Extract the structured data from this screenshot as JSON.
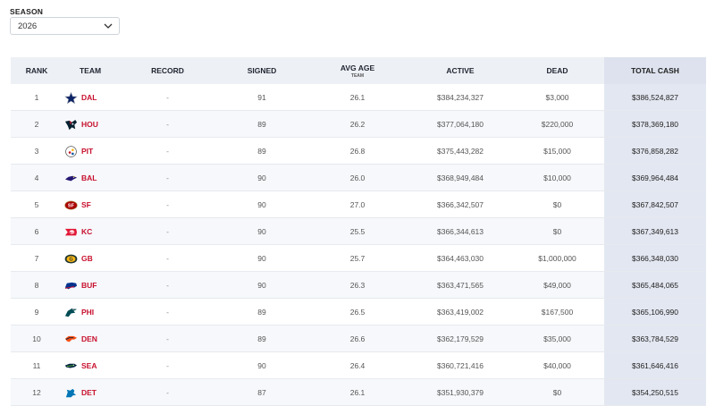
{
  "season": {
    "label": "SEASON",
    "selected": "2026"
  },
  "headers": {
    "rank": "RANK",
    "team": "TEAM",
    "record": "RECORD",
    "signed": "SIGNED",
    "avg_age": "AVG AGE",
    "avg_age_sub": "TEAM",
    "active": "ACTIVE",
    "dead": "DEAD",
    "total_cash": "TOTAL CASH"
  },
  "rows": [
    {
      "rank": "1",
      "team": "DAL",
      "logo": "cowboys-star-icon",
      "record": "-",
      "signed": "91",
      "avg_age": "26.1",
      "active": "$384,234,327",
      "dead": "$3,000",
      "total": "$386,524,827"
    },
    {
      "rank": "2",
      "team": "HOU",
      "logo": "texans-bull-icon",
      "record": "-",
      "signed": "89",
      "avg_age": "26.2",
      "active": "$377,064,180",
      "dead": "$220,000",
      "total": "$378,369,180"
    },
    {
      "rank": "3",
      "team": "PIT",
      "logo": "steelers-logo-icon",
      "record": "-",
      "signed": "89",
      "avg_age": "26.8",
      "active": "$375,443,282",
      "dead": "$15,000",
      "total": "$376,858,282"
    },
    {
      "rank": "4",
      "team": "BAL",
      "logo": "ravens-icon",
      "record": "-",
      "signed": "90",
      "avg_age": "26.0",
      "active": "$368,949,484",
      "dead": "$10,000",
      "total": "$369,964,484"
    },
    {
      "rank": "5",
      "team": "SF",
      "logo": "49ers-oval-icon",
      "record": "-",
      "signed": "90",
      "avg_age": "27.0",
      "active": "$366,342,507",
      "dead": "$0",
      "total": "$367,842,507"
    },
    {
      "rank": "6",
      "team": "KC",
      "logo": "chiefs-arrowhead-icon",
      "record": "-",
      "signed": "90",
      "avg_age": "25.5",
      "active": "$366,344,613",
      "dead": "$0",
      "total": "$367,349,613"
    },
    {
      "rank": "7",
      "team": "GB",
      "logo": "packers-g-icon",
      "record": "-",
      "signed": "90",
      "avg_age": "25.7",
      "active": "$364,463,030",
      "dead": "$1,000,000",
      "total": "$366,348,030"
    },
    {
      "rank": "8",
      "team": "BUF",
      "logo": "bills-buffalo-icon",
      "record": "-",
      "signed": "90",
      "avg_age": "26.3",
      "active": "$363,471,565",
      "dead": "$49,000",
      "total": "$365,484,065"
    },
    {
      "rank": "9",
      "team": "PHI",
      "logo": "eagles-head-icon",
      "record": "-",
      "signed": "89",
      "avg_age": "26.5",
      "active": "$363,419,002",
      "dead": "$167,500",
      "total": "$365,106,990"
    },
    {
      "rank": "10",
      "team": "DEN",
      "logo": "broncos-horse-icon",
      "record": "-",
      "signed": "89",
      "avg_age": "26.6",
      "active": "$362,179,529",
      "dead": "$35,000",
      "total": "$363,784,529"
    },
    {
      "rank": "11",
      "team": "SEA",
      "logo": "seahawks-head-icon",
      "record": "-",
      "signed": "90",
      "avg_age": "26.4",
      "active": "$360,721,416",
      "dead": "$40,000",
      "total": "$361,646,416"
    },
    {
      "rank": "12",
      "team": "DET",
      "logo": "lions-icon",
      "record": "-",
      "signed": "87",
      "avg_age": "26.1",
      "active": "$351,930,379",
      "dead": "$0",
      "total": "$354,250,515"
    }
  ]
}
